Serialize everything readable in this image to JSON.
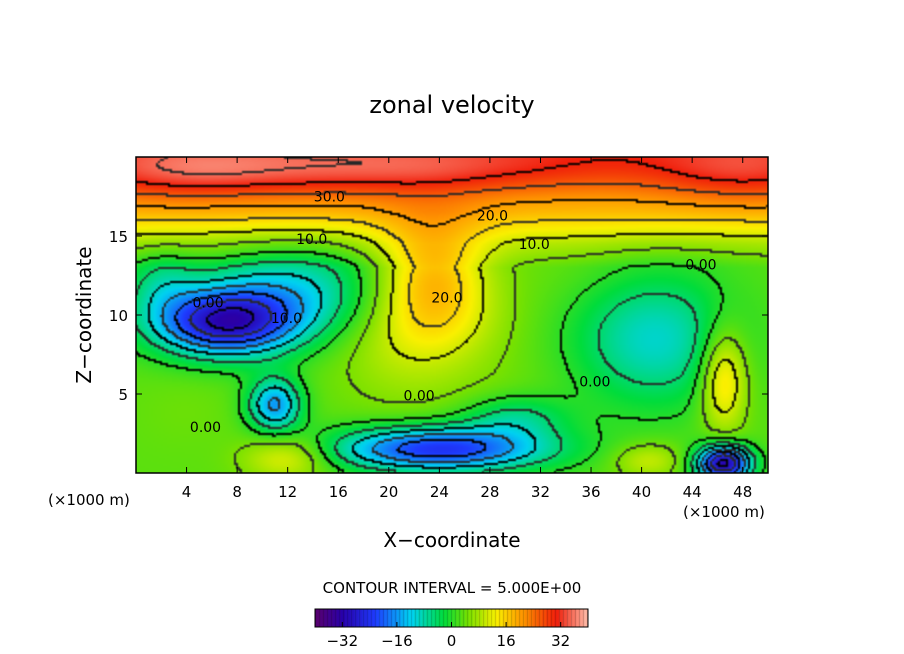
{
  "chart_data": {
    "type": "heatmap",
    "title": "zonal velocity",
    "xlabel": "X−coordinate",
    "ylabel": "Z−coordinate",
    "x_unit": "(×1000 m)",
    "x_unit_right": "(×1000 m)",
    "xlim": [
      0,
      50
    ],
    "ylim": [
      0,
      20
    ],
    "x_ticks": [
      4,
      8,
      12,
      16,
      20,
      24,
      28,
      32,
      36,
      40,
      44,
      48
    ],
    "y_ticks": [
      5,
      10,
      15
    ],
    "contour_interval_text": "CONTOUR INTERVAL = 5.000E+00",
    "colorbar": {
      "range": [
        -40,
        40
      ],
      "ticks": [
        -32,
        -16,
        0,
        16,
        32
      ]
    },
    "contour_labels": [
      {
        "text": "30.0",
        "x": 15.3,
        "y": 17.5
      },
      {
        "text": "20.0",
        "x": 28.2,
        "y": 16.3
      },
      {
        "text": "10.0",
        "x": 13.9,
        "y": 14.8
      },
      {
        "text": "10.0",
        "x": 31.5,
        "y": 14.5
      },
      {
        "text": "0.00",
        "x": 44.7,
        "y": 13.2
      },
      {
        "text": "20.0",
        "x": 24.6,
        "y": 11.1
      },
      {
        "text": "0.00",
        "x": 5.7,
        "y": 10.8
      },
      {
        "text": "10.0",
        "x": 11.9,
        "y": 9.8
      },
      {
        "text": "0.00",
        "x": 36.3,
        "y": 5.8
      },
      {
        "text": "0.00",
        "x": 22.4,
        "y": 4.9
      },
      {
        "text": "0.00",
        "x": 5.5,
        "y": 2.9
      }
    ],
    "features": [
      {
        "x": 20.0,
        "y": 19.2,
        "value": 35,
        "sx": 16.0,
        "sy": 1.1
      },
      {
        "x": 4.0,
        "y": 19.0,
        "value": 30,
        "sx": 5.0,
        "sy": 1.2
      },
      {
        "x": 48.0,
        "y": 19.0,
        "value": 32,
        "sx": 5.0,
        "sy": 1.3
      },
      {
        "x": 36.0,
        "y": 18.8,
        "value": 22,
        "sx": 10.0,
        "sy": 1.4
      },
      {
        "x": 23.5,
        "y": 12.5,
        "value": 16,
        "sx": 3.0,
        "sy": 2.6
      },
      {
        "x": 21.0,
        "y": 8.5,
        "value": 8,
        "sx": 4.0,
        "sy": 3.0
      },
      {
        "x": 25.0,
        "y": 9.5,
        "value": 6,
        "sx": 4.0,
        "sy": 2.0
      },
      {
        "x": 7.0,
        "y": 9.5,
        "value": -28,
        "sx": 4.0,
        "sy": 1.5
      },
      {
        "x": 12.5,
        "y": 11.5,
        "value": -10,
        "sx": 5.0,
        "sy": 2.0
      },
      {
        "x": 11.0,
        "y": 4.3,
        "value": -16,
        "sx": 1.5,
        "sy": 1.2
      },
      {
        "x": 24.0,
        "y": 1.5,
        "value": -24,
        "sx": 6.0,
        "sy": 1.0
      },
      {
        "x": 41.0,
        "y": 8.5,
        "value": -10,
        "sx": 4.5,
        "sy": 3.0
      },
      {
        "x": 46.5,
        "y": 0.6,
        "value": -32,
        "sx": 1.5,
        "sy": 0.8
      },
      {
        "x": 46.5,
        "y": 6.0,
        "value": 17,
        "sx": 1.3,
        "sy": 2.3
      },
      {
        "x": 12.0,
        "y": 1.0,
        "value": 13,
        "sx": 2.5,
        "sy": 1.0
      },
      {
        "x": 40.5,
        "y": 0.8,
        "value": 10,
        "sx": 2.0,
        "sy": 0.8
      },
      {
        "x": 4.0,
        "y": 4.0,
        "value": 4,
        "sx": 3.0,
        "sy": 2.0
      },
      {
        "x": 28.0,
        "y": 5.0,
        "value": 4,
        "sx": 5.0,
        "sy": 2.0
      },
      {
        "x": 36.0,
        "y": 13.0,
        "value": 4,
        "sx": 5.0,
        "sy": 2.0
      },
      {
        "x": 30.0,
        "y": 3.5,
        "value": -6,
        "sx": 3.0,
        "sy": 1.0
      },
      {
        "x": 2.0,
        "y": 12.0,
        "value": -4,
        "sx": 2.0,
        "sy": 1.5
      }
    ],
    "background_profile": [
      {
        "y": 0,
        "value": 3
      },
      {
        "y": 13,
        "value": 3
      },
      {
        "y": 14.5,
        "value": 8
      },
      {
        "y": 16.5,
        "value": 18
      },
      {
        "y": 18,
        "value": 23
      },
      {
        "y": 20,
        "value": 28
      }
    ]
  }
}
